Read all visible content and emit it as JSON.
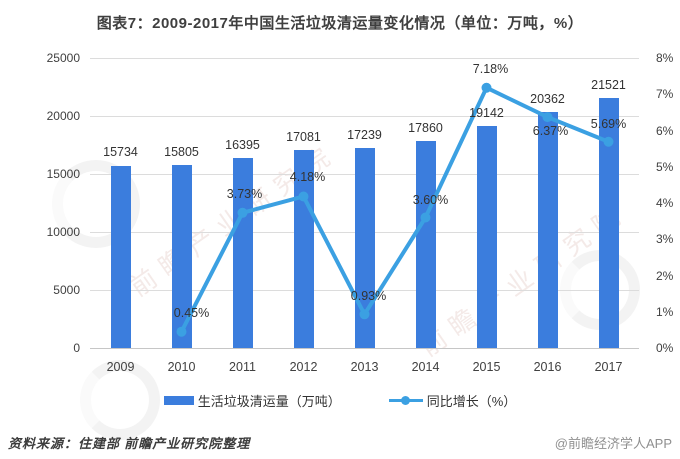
{
  "chart_data": {
    "type": "combo-bar-line",
    "title": "图表7：2009-2017年中国生活垃圾清运量变化情况（单位：万吨，%）",
    "categories": [
      "2009",
      "2010",
      "2011",
      "2012",
      "2013",
      "2014",
      "2015",
      "2016",
      "2017"
    ],
    "series": [
      {
        "name": "生活垃圾清运量（万吨）",
        "type": "bar",
        "color": "#3b7ddd",
        "values": [
          15734,
          15805,
          16395,
          17081,
          17239,
          17860,
          19142,
          20362,
          21521
        ],
        "value_labels": [
          "15734",
          "15805",
          "16395",
          "17081",
          "17239",
          "17860",
          "19142",
          "20362",
          "21521"
        ]
      },
      {
        "name": "同比增长（%）",
        "type": "line",
        "color": "#3ba0e2",
        "values": [
          null,
          0.45,
          3.73,
          4.18,
          0.93,
          3.6,
          7.18,
          6.37,
          5.69
        ],
        "value_labels": [
          null,
          "0.45%",
          "3.73%",
          "4.18%",
          "0.93%",
          "3.60%",
          "7.18%",
          "6.37%",
          "5.69%"
        ]
      }
    ],
    "y_axis_left": {
      "ticks": [
        "0",
        "5000",
        "10000",
        "15000",
        "20000",
        "25000"
      ],
      "min": 0,
      "max": 25000
    },
    "y_axis_right": {
      "ticks": [
        "0%",
        "1%",
        "2%",
        "3%",
        "4%",
        "5%",
        "6%",
        "7%",
        "8%"
      ],
      "min": 0,
      "max": 8
    },
    "grid": "horizontal",
    "legend_position": "bottom"
  },
  "footer": {
    "source": "资料来源：住建部   前瞻产业研究院整理",
    "credit": "@前瞻经济学人APP"
  },
  "watermark": {
    "text": "前瞻产业研究院",
    "logo_name": "qianzhan-logo"
  }
}
